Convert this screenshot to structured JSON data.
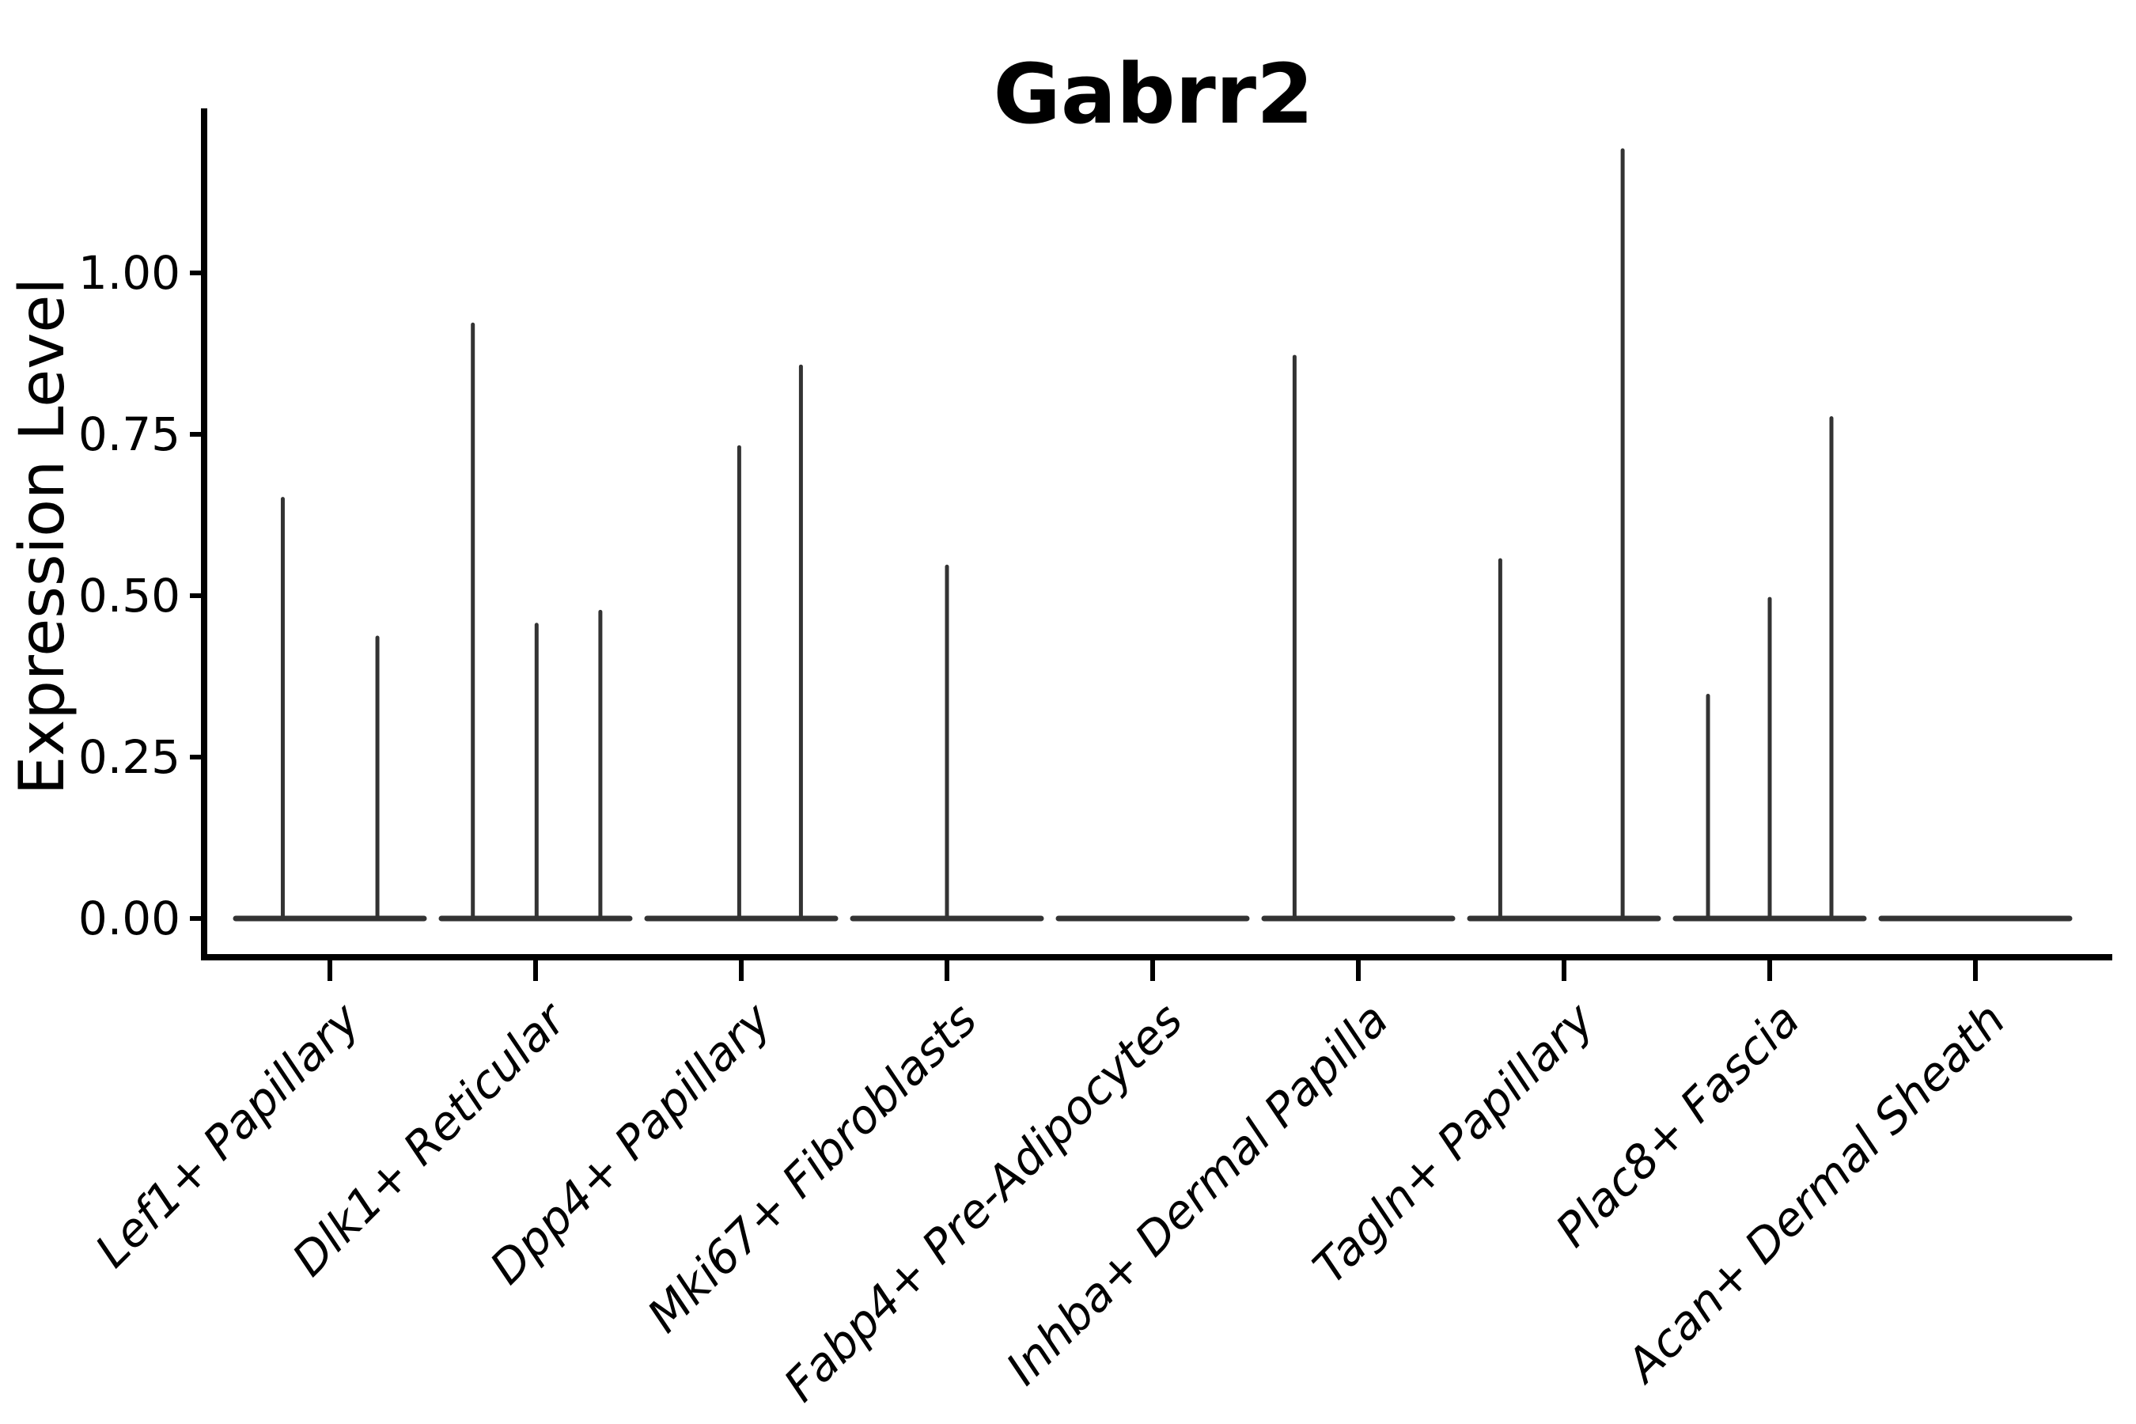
{
  "figure": {
    "title": "Gabrr2",
    "background": "#ffffff",
    "line_color": "#333333",
    "axis_color": "#000000"
  },
  "chart_data": {
    "type": "violin",
    "title": "Gabrr2",
    "xlabel": "",
    "ylabel": "Expression Level",
    "ylim": [
      -0.06,
      1.255
    ],
    "grid": false,
    "legend": false,
    "y_ticks": [
      0,
      0.25,
      0.5,
      0.75,
      1.0
    ],
    "y_tick_labels": [
      "0.00",
      "0.25",
      "0.50",
      "0.75",
      "1.00"
    ],
    "x_tick_label_style": "italic, rotated 45deg",
    "violin_width": 0.916,
    "categories": [
      {
        "label": "Lef1+ Papillary",
        "spikes": [
          {
            "offset": -0.229,
            "max": 0.65
          },
          {
            "offset": 0.231,
            "max": 0.435
          }
        ]
      },
      {
        "label": "Dlk1+ Reticular",
        "spikes": [
          {
            "offset": -0.305,
            "max": 0.92
          },
          {
            "offset": 0.005,
            "max": 0.455
          },
          {
            "offset": 0.315,
            "max": 0.475
          }
        ]
      },
      {
        "label": "Dpp4+ Papillary",
        "spikes": [
          {
            "offset": -0.01,
            "max": 0.73
          },
          {
            "offset": 0.29,
            "max": 0.855
          }
        ]
      },
      {
        "label": "Mki67+ Fibroblasts",
        "spikes": [
          {
            "offset": 0.0,
            "max": 0.545
          }
        ]
      },
      {
        "label": "Fabp4+ Pre-Adipocytes",
        "spikes": []
      },
      {
        "label": "Inhba+ Dermal Papilla",
        "spikes": [
          {
            "offset": -0.31,
            "max": 0.87
          }
        ]
      },
      {
        "label": "Tagln+ Papillary",
        "spikes": [
          {
            "offset": -0.31,
            "max": 0.555
          },
          {
            "offset": 0.285,
            "max": 1.19
          }
        ]
      },
      {
        "label": "Plac8+ Fascia",
        "spikes": [
          {
            "offset": -0.3,
            "max": 0.345
          },
          {
            "offset": 0.0,
            "max": 0.495
          },
          {
            "offset": 0.3,
            "max": 0.775
          }
        ]
      },
      {
        "label": "Acan+ Dermal Sheath",
        "spikes": []
      }
    ]
  }
}
